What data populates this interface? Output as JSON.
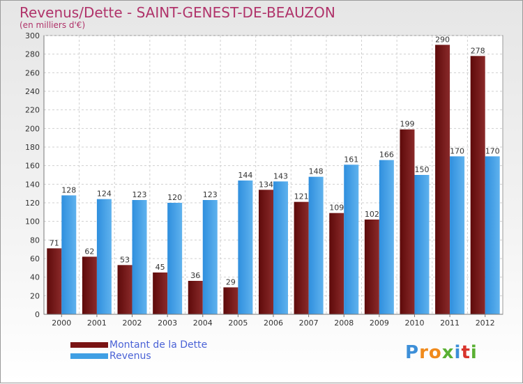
{
  "header": {
    "title": "Revenus/Dette - SAINT-GENEST-DE-BEAUZON",
    "subtitle": "(en milliers d'€)"
  },
  "legend": {
    "items": [
      {
        "label": "Montant de la Dette",
        "color": "#7a1414"
      },
      {
        "label": "Revenus",
        "color": "#3f9fe4"
      }
    ]
  },
  "logo": {
    "letters": [
      {
        "char": "P",
        "color": "#3d8fd8"
      },
      {
        "char": "r",
        "color": "#f08a1c"
      },
      {
        "char": "o",
        "color": "#f08a1c"
      },
      {
        "char": "x",
        "color": "#5ab033"
      },
      {
        "char": "i",
        "color": "#3d8fd8"
      },
      {
        "char": "t",
        "color": "#d8342c"
      },
      {
        "char": "i",
        "color": "#5ab033"
      }
    ]
  },
  "chart_data": {
    "type": "bar",
    "categories": [
      "2000",
      "2001",
      "2002",
      "2003",
      "2004",
      "2005",
      "2006",
      "2007",
      "2008",
      "2009",
      "2010",
      "2011",
      "2012"
    ],
    "series": [
      {
        "name": "Montant de la Dette",
        "color": "#7a1414",
        "values": [
          71,
          62,
          53,
          45,
          36,
          29,
          134,
          121,
          109,
          102,
          199,
          290,
          278
        ]
      },
      {
        "name": "Revenus",
        "color": "#3f9fe4",
        "values": [
          128,
          124,
          123,
          120,
          123,
          144,
          143,
          148,
          161,
          166,
          150,
          170,
          170
        ]
      }
    ],
    "ylim": [
      0,
      300
    ],
    "ytick_step": 20,
    "grid": true,
    "legend_position": "bottom-left",
    "xlabel": "",
    "ylabel": ""
  }
}
